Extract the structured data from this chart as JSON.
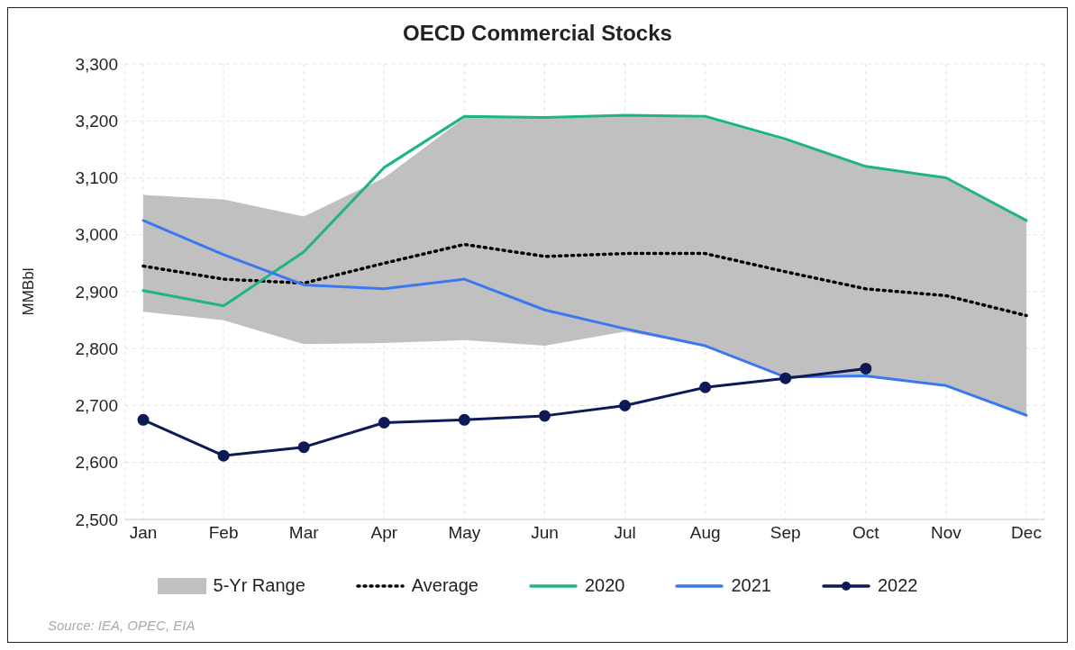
{
  "chart_data": {
    "type": "line",
    "title": "OECD Commercial Stocks",
    "ylabel": "MMBbl",
    "categories": [
      "Jan",
      "Feb",
      "Mar",
      "Apr",
      "May",
      "Jun",
      "Jul",
      "Aug",
      "Sep",
      "Oct",
      "Nov",
      "Dec"
    ],
    "series": [
      {
        "name": "Average",
        "color": "#000000",
        "line_style": "dotted",
        "values": [
          2945,
          2922,
          2915,
          2950,
          2983,
          2962,
          2967,
          2967,
          2935,
          2905,
          2893,
          2858
        ],
        "lower": [
          2865,
          2850,
          2808,
          2810,
          2815,
          2805,
          2830,
          2805,
          2750,
          2750,
          2735,
          2685
        ],
        "upper": [
          3070,
          3062,
          3032,
          3100,
          3205,
          3205,
          3210,
          3205,
          3165,
          3120,
          3100,
          3025
        ]
      },
      {
        "name": "2020",
        "color": "#1fb582",
        "values": [
          2902,
          2875,
          2970,
          3118,
          3208,
          3206,
          3210,
          3208,
          3168,
          3120,
          3100,
          3025
        ]
      },
      {
        "name": "2021",
        "color": "#3a78f2",
        "values": [
          3025,
          2965,
          2912,
          2905,
          2922,
          2868,
          2835,
          2805,
          2750,
          2752,
          2735,
          2683
        ]
      },
      {
        "name": "2022",
        "color": "#0d1a56",
        "marker": "circle",
        "values": [
          2675,
          2612,
          2627,
          2670,
          2675,
          2682,
          2700,
          2732,
          2748,
          2765,
          null,
          null
        ]
      }
    ],
    "ylim": [
      2500,
      3300
    ],
    "yticks": [
      {
        "value": 2500,
        "label": "2,500"
      },
      {
        "value": 2600,
        "label": "2,600"
      },
      {
        "value": 2700,
        "label": "2,700"
      },
      {
        "value": 2800,
        "label": "2,800"
      },
      {
        "value": 2900,
        "label": "2,900"
      },
      {
        "value": 3000,
        "label": "3,000"
      },
      {
        "value": 3100,
        "label": "3,100"
      },
      {
        "value": 3200,
        "label": "3,200"
      },
      {
        "value": 3300,
        "label": "3,300"
      }
    ],
    "grid": true,
    "legend": "bottom",
    "marker": "none",
    "line_style": "solid",
    "annotations": [
      "5-Yr Range",
      "Source: IEA, OPEC, EIA"
    ]
  }
}
